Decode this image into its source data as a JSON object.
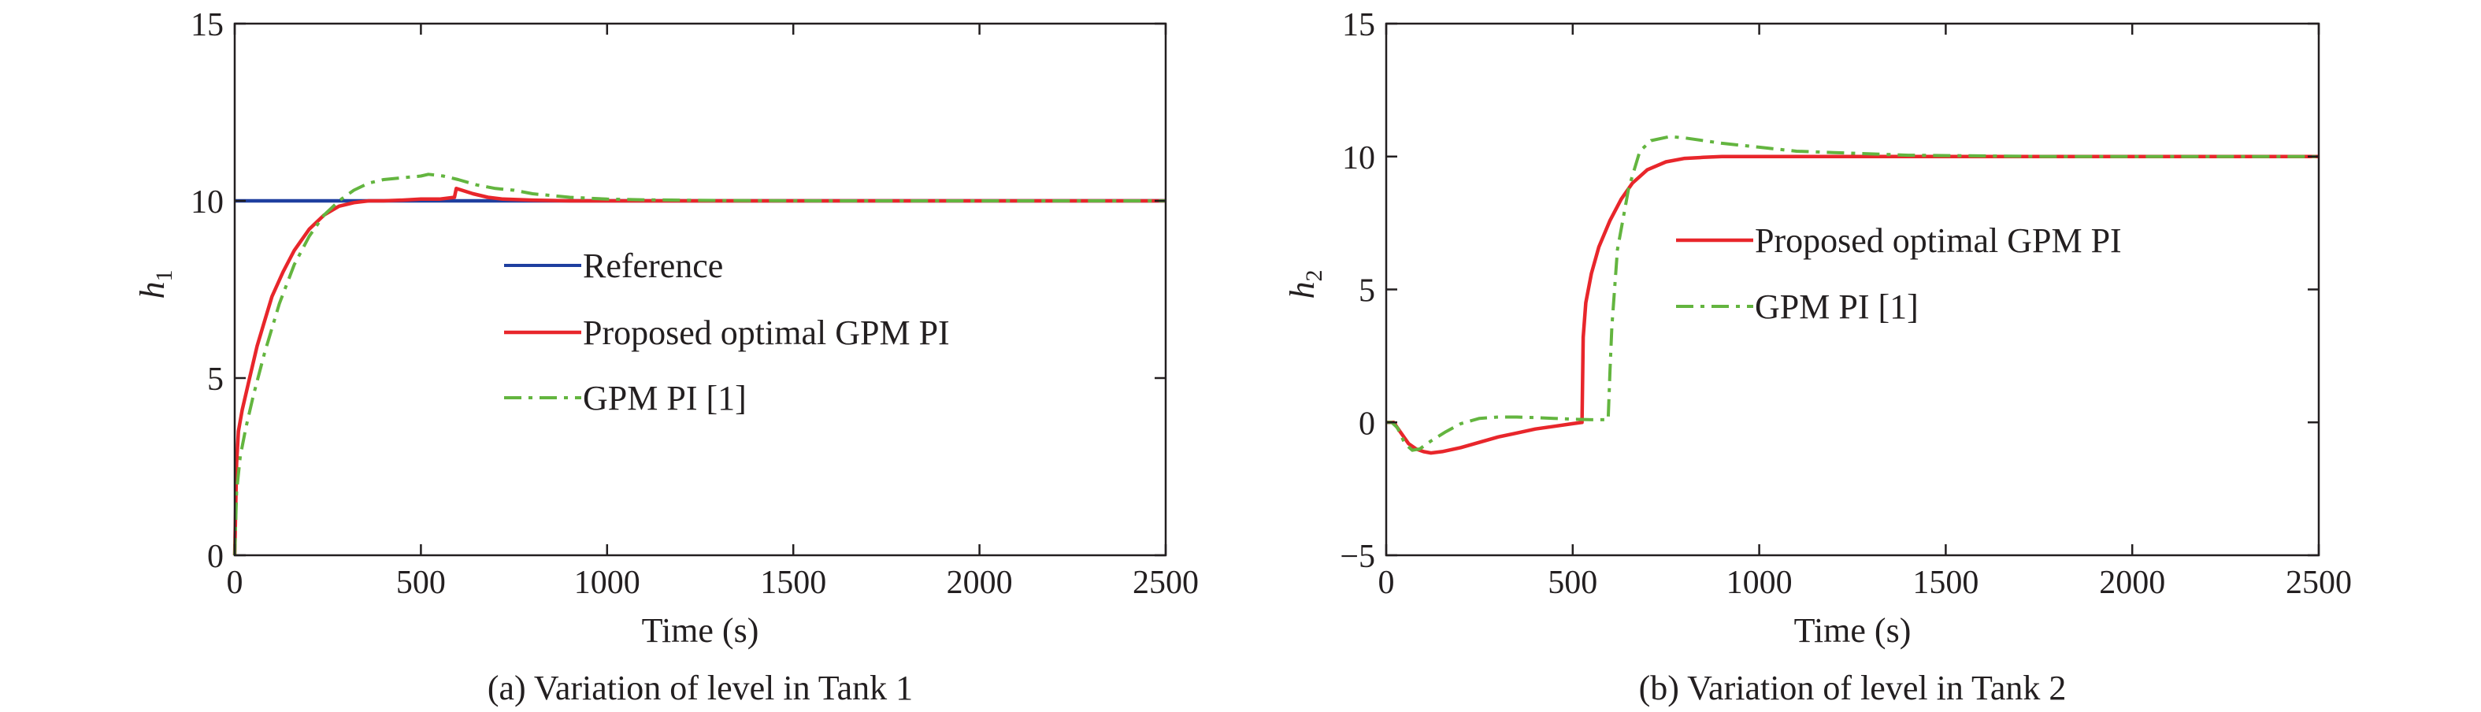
{
  "chart_data": [
    {
      "type": "line",
      "caption": "(a) Variation of level in Tank 1",
      "xlabel": "Time (s)",
      "ylabel": "h",
      "ylabel_sub": "1",
      "xlim": [
        0,
        2500
      ],
      "ylim": [
        0,
        15
      ],
      "xticks": [
        0,
        500,
        1000,
        1500,
        2000,
        2500
      ],
      "yticks": [
        0,
        5,
        10,
        15
      ],
      "grid": false,
      "legend_position": "center",
      "series": [
        {
          "name": "Reference",
          "color": "#1f3f9f",
          "style": "solid",
          "x": [
            0,
            2500
          ],
          "y": [
            10,
            10
          ]
        },
        {
          "name": "Proposed optimal GPM PI",
          "color": "#e8262b",
          "style": "solid",
          "x": [
            0,
            5,
            10,
            20,
            40,
            60,
            80,
            100,
            130,
            160,
            200,
            240,
            280,
            320,
            360,
            400,
            450,
            500,
            550,
            590,
            595,
            610,
            640,
            680,
            720,
            800,
            900,
            1000,
            1200,
            1500,
            2000,
            2500
          ],
          "y": [
            0,
            2.6,
            3.5,
            4.1,
            5.0,
            5.9,
            6.6,
            7.3,
            8.0,
            8.6,
            9.2,
            9.6,
            9.85,
            9.95,
            10.0,
            10.0,
            10.02,
            10.05,
            10.05,
            10.1,
            10.35,
            10.3,
            10.2,
            10.1,
            10.05,
            10.02,
            10.0,
            10.0,
            10.0,
            10.0,
            10.0,
            10.0
          ]
        },
        {
          "name": "GPM PI [1]",
          "color": "#63b53f",
          "style": "dashdot",
          "x": [
            0,
            5,
            15,
            30,
            50,
            80,
            120,
            160,
            200,
            240,
            280,
            320,
            360,
            400,
            450,
            500,
            520,
            560,
            600,
            650,
            700,
            750,
            800,
            900,
            1000,
            1100,
            1300,
            1600,
            2000,
            2500
          ],
          "y": [
            0,
            1.8,
            2.8,
            3.6,
            4.5,
            5.7,
            7.1,
            8.2,
            9.0,
            9.6,
            10.0,
            10.3,
            10.5,
            10.6,
            10.65,
            10.7,
            10.75,
            10.7,
            10.6,
            10.45,
            10.35,
            10.3,
            10.2,
            10.1,
            10.05,
            10.03,
            10.01,
            10.0,
            10.0,
            10.0
          ]
        }
      ]
    },
    {
      "type": "line",
      "caption": "(b) Variation of level in Tank 2",
      "xlabel": "Time (s)",
      "ylabel": "h",
      "ylabel_sub": "2",
      "xlim": [
        0,
        2500
      ],
      "ylim": [
        -5,
        15
      ],
      "xticks": [
        0,
        500,
        1000,
        1500,
        2000,
        2500
      ],
      "yticks": [
        -5,
        0,
        5,
        10,
        15
      ],
      "ytick_labels": [
        "−5",
        "0",
        "5",
        "10",
        "15"
      ],
      "grid": false,
      "legend_position": "upper-center",
      "series": [
        {
          "name": "Proposed optimal GPM PI",
          "color": "#e8262b",
          "style": "solid",
          "x": [
            0,
            20,
            40,
            60,
            80,
            100,
            120,
            150,
            200,
            250,
            300,
            350,
            400,
            450,
            500,
            525,
            528,
            535,
            550,
            570,
            600,
            630,
            660,
            700,
            750,
            800,
            850,
            900,
            1000,
            1500,
            2000,
            2500
          ],
          "y": [
            0,
            0,
            -0.4,
            -0.8,
            -1.0,
            -1.1,
            -1.15,
            -1.1,
            -0.95,
            -0.75,
            -0.55,
            -0.4,
            -0.25,
            -0.15,
            -0.05,
            0,
            3.2,
            4.5,
            5.6,
            6.6,
            7.6,
            8.4,
            9.0,
            9.5,
            9.8,
            9.93,
            9.97,
            10.0,
            10.0,
            10.0,
            10.0,
            10.0
          ]
        },
        {
          "name": "GPM PI [1]",
          "color": "#63b53f",
          "style": "dashdot",
          "x": [
            0,
            15,
            30,
            50,
            70,
            90,
            120,
            160,
            200,
            250,
            300,
            350,
            400,
            450,
            500,
            550,
            595,
            600,
            605,
            620,
            650,
            680,
            710,
            760,
            800,
            900,
            1000,
            1100,
            1200,
            1400,
            1800,
            2500
          ],
          "y": [
            0,
            0,
            -0.2,
            -0.8,
            -1.05,
            -1.0,
            -0.7,
            -0.35,
            -0.05,
            0.15,
            0.2,
            0.2,
            0.18,
            0.15,
            0.12,
            0.1,
            0.1,
            2.0,
            3.6,
            6.5,
            8.8,
            10.2,
            10.6,
            10.75,
            10.7,
            10.5,
            10.35,
            10.2,
            10.15,
            10.05,
            10.0,
            10.0
          ]
        }
      ]
    }
  ]
}
